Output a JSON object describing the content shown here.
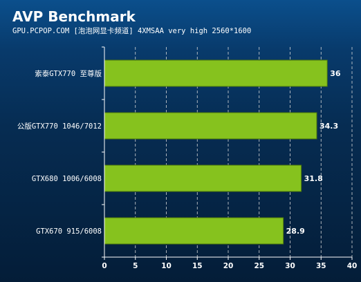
{
  "chart_data": {
    "type": "bar",
    "orientation": "horizontal",
    "title": "AVP Benchmark",
    "subtitle": "GPU.PCPOP.COM [泡泡网显卡频道]  4XMSAA very high 2560*1600",
    "categories": [
      "索泰GTX770 至尊版",
      "公版GTX770 1046/7012",
      "GTX680 1006/6008",
      "GTX670 915/6008"
    ],
    "values": [
      36,
      34.3,
      31.8,
      28.9
    ],
    "value_labels": [
      "36",
      "34.3",
      "31.8",
      "28.9"
    ],
    "xlim": [
      0,
      40
    ],
    "xticks": [
      0,
      5,
      10,
      15,
      20,
      25,
      30,
      35,
      40
    ],
    "grid": true,
    "legend": "none",
    "colors": {
      "bar_fill": "#86c21e",
      "bar_stroke": "#4e7a0a",
      "grid": "#d8d8d8",
      "axis": "#ffffff",
      "text": "#ffffff"
    }
  }
}
